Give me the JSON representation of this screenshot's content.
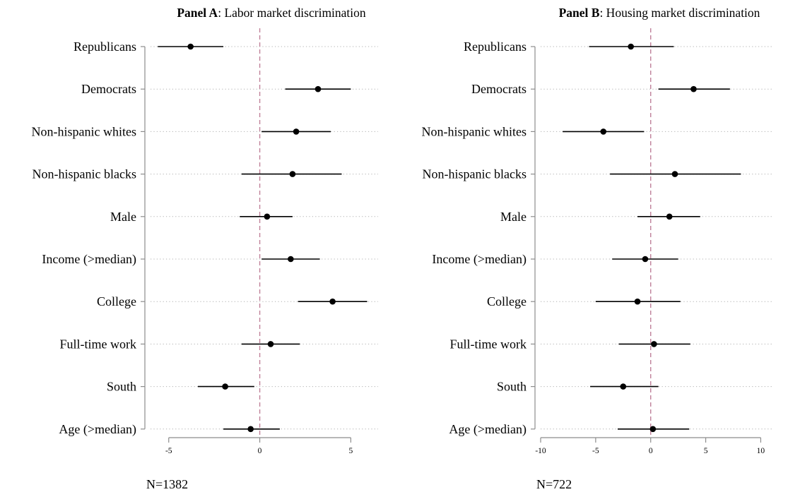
{
  "chart_data": [
    {
      "type": "coefficient-plot",
      "title_bold": "Panel A",
      "title_rest": ": Labor market discrimination",
      "note": "N=1382",
      "categories": [
        "Republicans",
        "Democrats",
        "Non-hispanic whites",
        "Non-hispanic blacks",
        "Male",
        "Income (>median)",
        "College",
        "Full-time work",
        "South",
        "Age (>median)"
      ],
      "estimates": [
        -3.8,
        3.2,
        2.0,
        1.8,
        0.4,
        1.7,
        4.0,
        0.6,
        -1.9,
        -0.5
      ],
      "ci_low": [
        -5.6,
        1.4,
        0.1,
        -1.0,
        -1.1,
        0.1,
        2.1,
        -1.0,
        -3.4,
        -2.0
      ],
      "ci_high": [
        -2.0,
        5.0,
        3.9,
        4.5,
        1.8,
        3.3,
        5.9,
        2.2,
        -0.3,
        1.1
      ],
      "xlim": [
        -6,
        6.5
      ],
      "xticks": [
        "-5",
        "0",
        "5"
      ],
      "zero_line": true,
      "grid": true
    },
    {
      "type": "coefficient-plot",
      "title_bold": "Panel B",
      "title_rest": ": Housing market discrimination",
      "note": "N=722",
      "categories": [
        "Republicans",
        "Democrats",
        "Non-hispanic whites",
        "Non-hispanic blacks",
        "Male",
        "Income (>median)",
        "College",
        "Full-time work",
        "South",
        "Age (>median)"
      ],
      "estimates": [
        -1.8,
        3.9,
        -4.3,
        2.2,
        1.7,
        -0.5,
        -1.2,
        0.3,
        -2.5,
        0.2
      ],
      "ci_low": [
        -5.6,
        0.7,
        -8.0,
        -3.7,
        -1.2,
        -3.5,
        -5.0,
        -2.9,
        -5.5,
        -3.0
      ],
      "ci_high": [
        2.1,
        7.2,
        -0.6,
        8.2,
        4.5,
        2.5,
        2.7,
        3.6,
        0.7,
        3.5
      ],
      "xlim": [
        -10,
        11
      ],
      "xticks": [
        "-10",
        "-5",
        "0",
        "5",
        "10"
      ],
      "zero_line": true,
      "grid": true
    }
  ],
  "colors": {
    "axis": "#8c8c8c",
    "grid": "#b0b0b0",
    "zero_line": "#c0819a",
    "marker": "#000000"
  }
}
